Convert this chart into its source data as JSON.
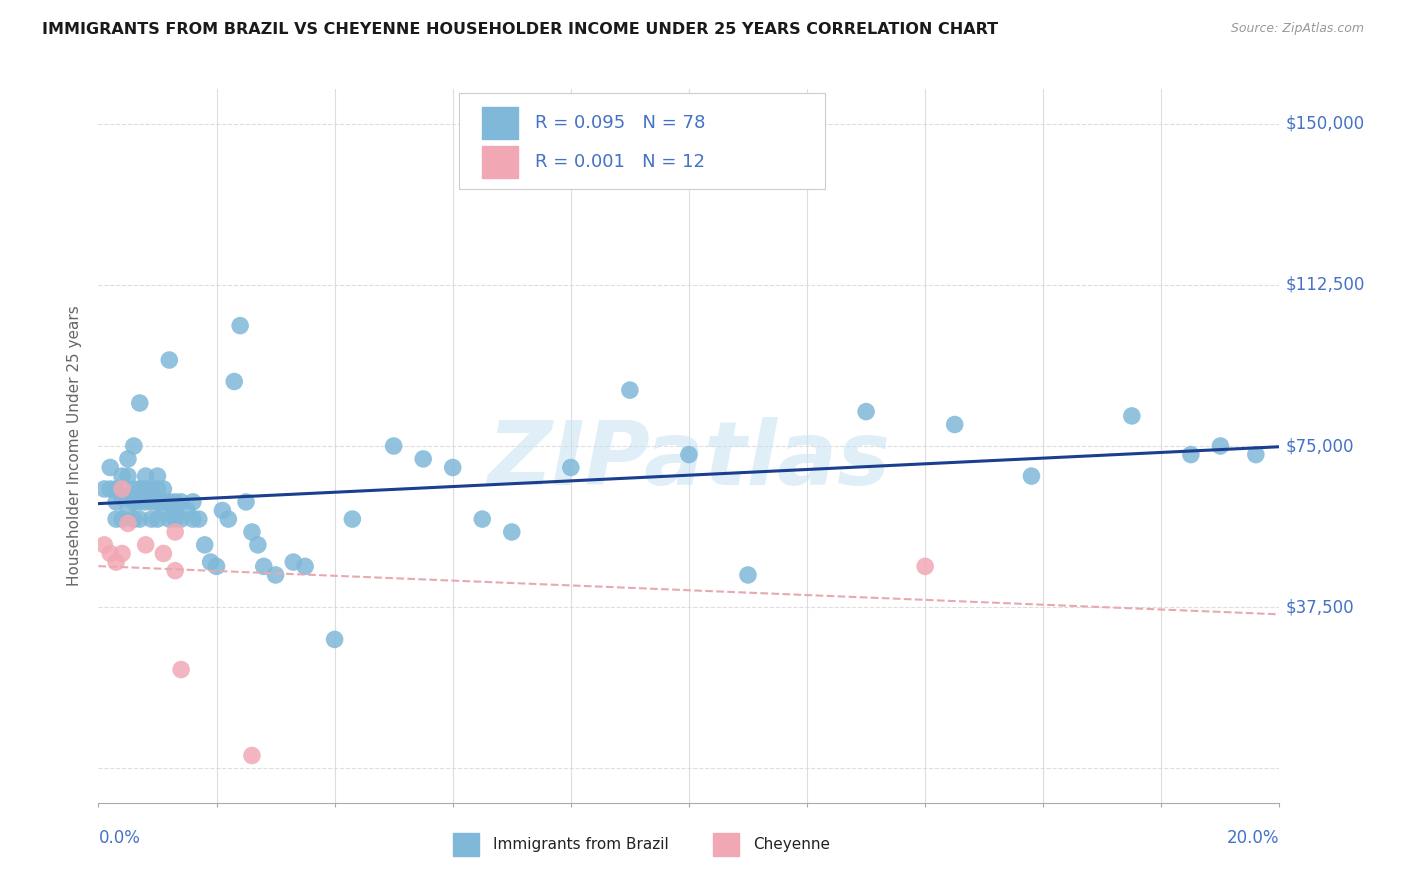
{
  "title": "IMMIGRANTS FROM BRAZIL VS CHEYENNE HOUSEHOLDER INCOME UNDER 25 YEARS CORRELATION CHART",
  "source": "Source: ZipAtlas.com",
  "ylabel": "Householder Income Under 25 years",
  "legend_label1": "Immigrants from Brazil",
  "legend_label2": "Cheyenne",
  "R1": "0.095",
  "N1": "78",
  "R2": "0.001",
  "N2": "12",
  "xlim": [
    0.0,
    0.2
  ],
  "ylim": [
    -8000,
    158000
  ],
  "yticks": [
    0,
    37500,
    75000,
    112500,
    150000
  ],
  "ytick_labels": [
    "",
    "$37,500",
    "$75,000",
    "$112,500",
    "$150,000"
  ],
  "color_blue": "#7fb8d8",
  "color_pink": "#f2a8b4",
  "line_blue": "#1a3f8f",
  "line_pink": "#e8a8b0",
  "watermark": "ZIPatlas",
  "blue_x": [
    0.001,
    0.002,
    0.002,
    0.003,
    0.003,
    0.003,
    0.004,
    0.004,
    0.004,
    0.005,
    0.005,
    0.005,
    0.005,
    0.006,
    0.006,
    0.006,
    0.006,
    0.007,
    0.007,
    0.007,
    0.007,
    0.008,
    0.008,
    0.008,
    0.009,
    0.009,
    0.009,
    0.01,
    0.01,
    0.01,
    0.01,
    0.011,
    0.011,
    0.011,
    0.012,
    0.012,
    0.012,
    0.013,
    0.013,
    0.013,
    0.014,
    0.014,
    0.015,
    0.016,
    0.016,
    0.017,
    0.018,
    0.019,
    0.02,
    0.021,
    0.022,
    0.023,
    0.024,
    0.025,
    0.026,
    0.027,
    0.028,
    0.03,
    0.033,
    0.035,
    0.04,
    0.043,
    0.05,
    0.055,
    0.06,
    0.065,
    0.07,
    0.08,
    0.09,
    0.1,
    0.11,
    0.13,
    0.145,
    0.158,
    0.175,
    0.185,
    0.19,
    0.196
  ],
  "blue_y": [
    65000,
    65000,
    70000,
    58000,
    62000,
    65000,
    58000,
    63000,
    68000,
    60000,
    63000,
    68000,
    72000,
    58000,
    62000,
    65000,
    75000,
    58000,
    62000,
    65000,
    85000,
    62000,
    65000,
    68000,
    58000,
    62000,
    65000,
    58000,
    62000,
    65000,
    68000,
    60000,
    62000,
    65000,
    58000,
    62000,
    95000,
    58000,
    60000,
    62000,
    58000,
    62000,
    60000,
    58000,
    62000,
    58000,
    52000,
    48000,
    47000,
    60000,
    58000,
    90000,
    103000,
    62000,
    55000,
    52000,
    47000,
    45000,
    48000,
    47000,
    30000,
    58000,
    75000,
    72000,
    70000,
    58000,
    55000,
    70000,
    88000,
    73000,
    45000,
    83000,
    80000,
    68000,
    82000,
    73000,
    75000,
    73000
  ],
  "pink_x": [
    0.001,
    0.002,
    0.003,
    0.004,
    0.004,
    0.005,
    0.008,
    0.011,
    0.013,
    0.013,
    0.014,
    0.14
  ],
  "pink_y": [
    52000,
    50000,
    48000,
    65000,
    50000,
    57000,
    52000,
    50000,
    55000,
    46000,
    23000,
    47000
  ],
  "pink_outlier_x": [
    0.026
  ],
  "pink_outlier_y": [
    3000
  ],
  "background_color": "#ffffff",
  "grid_color": "#dddddd"
}
